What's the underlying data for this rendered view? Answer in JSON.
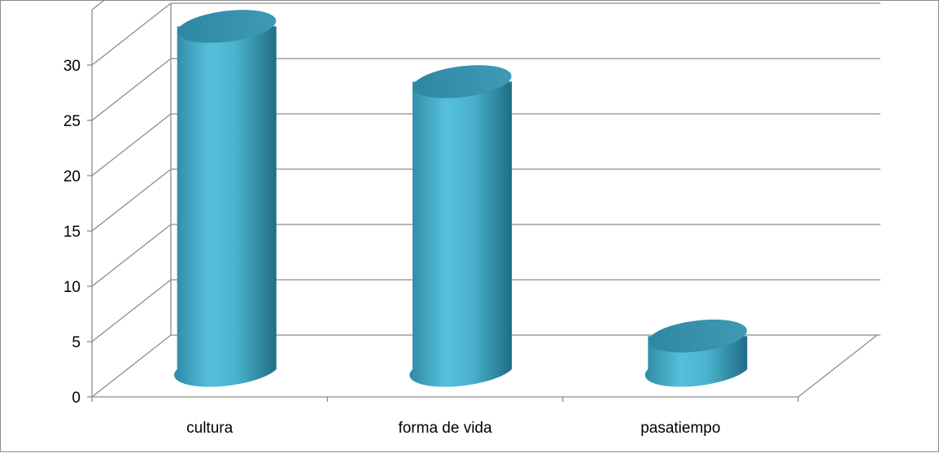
{
  "chart_data": {
    "type": "bar",
    "style": "3d-cylinder",
    "categories": [
      "cultura",
      "forma de vida",
      "pasatiempo"
    ],
    "values": [
      31,
      26,
      3
    ],
    "yticks": [
      "0",
      "5",
      "10",
      "15",
      "20",
      "25",
      "30"
    ],
    "ylim": [
      0,
      35
    ],
    "grid": true,
    "legend": "none",
    "bar_color": "#4bacc6"
  }
}
